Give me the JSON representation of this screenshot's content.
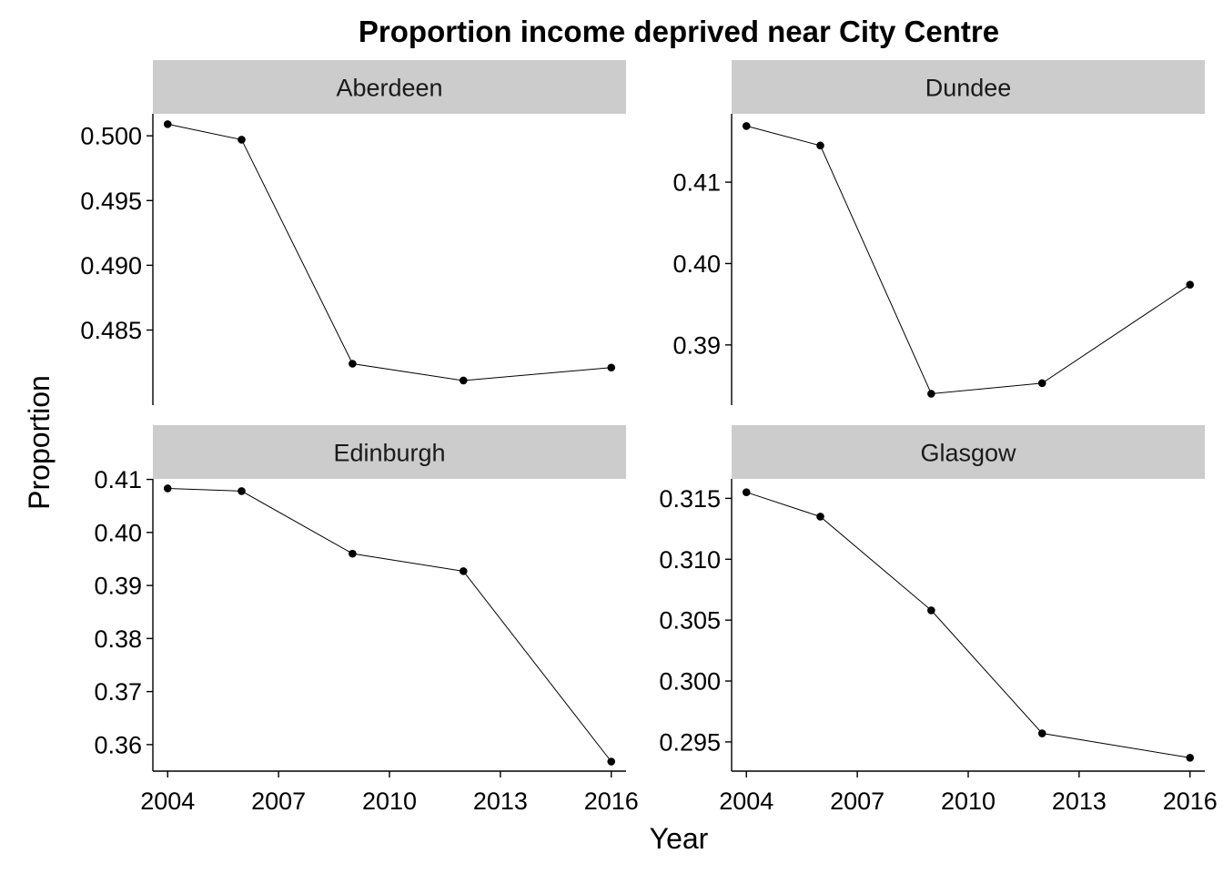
{
  "chart_data": {
    "type": "line",
    "title": "Proportion income deprived near City Centre",
    "xlabel": "Year",
    "ylabel": "Proportion",
    "grid": false,
    "x_ticks": [
      2004,
      2007,
      2010,
      2013,
      2016
    ],
    "xlim": [
      2003.6,
      2016.4
    ],
    "panels": [
      {
        "name": "Aberdeen",
        "x": [
          2004,
          2006,
          2009,
          2012,
          2016
        ],
        "y": [
          0.5009,
          0.4997,
          0.4824,
          0.4811,
          0.4821
        ],
        "ylim": [
          0.4792,
          0.5017
        ],
        "y_ticks": [
          0.485,
          0.49,
          0.495,
          0.5
        ],
        "y_tick_labels": [
          "0.485",
          "0.490",
          "0.495",
          "0.500"
        ]
      },
      {
        "name": "Dundee",
        "x": [
          2004,
          2006,
          2009,
          2012,
          2016
        ],
        "y": [
          0.4169,
          0.4145,
          0.384,
          0.3853,
          0.3974
        ],
        "ylim": [
          0.3826,
          0.4184
        ],
        "y_ticks": [
          0.39,
          0.4,
          0.41
        ],
        "y_tick_labels": [
          "0.39",
          "0.40",
          "0.41"
        ]
      },
      {
        "name": "Edinburgh",
        "x": [
          2004,
          2006,
          2009,
          2012,
          2016
        ],
        "y": [
          0.4083,
          0.4078,
          0.396,
          0.3927,
          0.3568
        ],
        "ylim": [
          0.355,
          0.4101
        ],
        "y_ticks": [
          0.36,
          0.37,
          0.38,
          0.39,
          0.4,
          0.41
        ],
        "y_tick_labels": [
          "0.36",
          "0.37",
          "0.38",
          "0.39",
          "0.40",
          "0.41"
        ]
      },
      {
        "name": "Glasgow",
        "x": [
          2004,
          2006,
          2009,
          2012,
          2016
        ],
        "y": [
          0.3155,
          0.3135,
          0.3058,
          0.2957,
          0.2937
        ],
        "ylim": [
          0.2926,
          0.3166
        ],
        "y_ticks": [
          0.295,
          0.3,
          0.305,
          0.31,
          0.315
        ],
        "y_tick_labels": [
          "0.295",
          "0.300",
          "0.305",
          "0.310",
          "0.315"
        ]
      }
    ]
  },
  "colors": {
    "strip_background": "#cccccc",
    "series": "#000000"
  }
}
